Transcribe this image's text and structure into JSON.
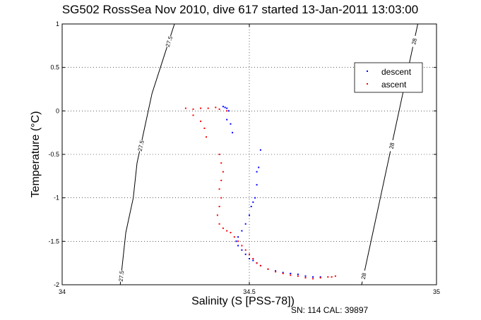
{
  "chart_data": {
    "type": "scatter",
    "title": "SG502 RossSea Nov 2010, dive 617 started 13-Jan-2011 13:03:00",
    "xlabel": "Salinity (S [PSS-78])",
    "ylabel": "Temperature (°C)",
    "xlim": [
      34,
      35
    ],
    "ylim": [
      -2,
      1
    ],
    "xticks": [
      "34",
      "34.5",
      "35"
    ],
    "yticks": [
      "-2",
      "-1.5",
      "-1",
      "-0.5",
      "0",
      "0.5",
      "1"
    ],
    "grid": true,
    "legend_position": "top-right",
    "footer": "SN: 114  CAL: 39897",
    "isopycnals": [
      {
        "sigma": 27.5,
        "labels": [
          "27.5",
          "27.5",
          "27.5"
        ],
        "points": [
          [
            34.3,
            1.0
          ],
          [
            34.27,
            0.6
          ],
          [
            34.24,
            0.2
          ],
          [
            34.22,
            -0.2
          ],
          [
            34.2,
            -0.6
          ],
          [
            34.19,
            -1.0
          ],
          [
            34.17,
            -1.4
          ],
          [
            34.16,
            -1.8
          ],
          [
            34.155,
            -2.0
          ]
        ]
      },
      {
        "sigma": 28,
        "labels": [
          "28",
          "28",
          "28"
        ],
        "points": [
          [
            34.95,
            1.0
          ],
          [
            34.93,
            0.6
          ],
          [
            34.91,
            0.2
          ],
          [
            34.89,
            -0.2
          ],
          [
            34.87,
            -0.6
          ],
          [
            34.85,
            -1.0
          ],
          [
            34.83,
            -1.4
          ],
          [
            34.81,
            -1.8
          ],
          [
            34.8,
            -2.0
          ]
        ]
      }
    ],
    "series": [
      {
        "name": "descent",
        "color": "#0000ff",
        "points": [
          [
            34.43,
            0.05
          ],
          [
            34.435,
            0.04
          ],
          [
            34.44,
            0.03
          ],
          [
            34.445,
            0.0
          ],
          [
            34.44,
            -0.1
          ],
          [
            34.45,
            -0.15
          ],
          [
            34.455,
            -0.25
          ],
          [
            34.53,
            -0.45
          ],
          [
            34.525,
            -0.65
          ],
          [
            34.52,
            -0.7
          ],
          [
            34.52,
            -0.85
          ],
          [
            34.515,
            -1.0
          ],
          [
            34.51,
            -1.05
          ],
          [
            34.505,
            -1.1
          ],
          [
            34.5,
            -1.2
          ],
          [
            34.49,
            -1.3
          ],
          [
            34.48,
            -1.38
          ],
          [
            34.47,
            -1.45
          ],
          [
            34.465,
            -1.5
          ],
          [
            34.47,
            -1.55
          ],
          [
            34.48,
            -1.6
          ],
          [
            34.49,
            -1.65
          ],
          [
            34.5,
            -1.7
          ],
          [
            34.51,
            -1.72
          ],
          [
            34.52,
            -1.75
          ],
          [
            34.53,
            -1.78
          ],
          [
            34.55,
            -1.82
          ],
          [
            34.57,
            -1.84
          ],
          [
            34.59,
            -1.86
          ],
          [
            34.61,
            -1.87
          ],
          [
            34.63,
            -1.88
          ],
          [
            34.65,
            -1.9
          ],
          [
            34.67,
            -1.91
          ],
          [
            34.69,
            -1.91
          ]
        ]
      },
      {
        "name": "ascent",
        "color": "#ff0000",
        "points": [
          [
            34.33,
            0.03
          ],
          [
            34.35,
            0.02
          ],
          [
            34.37,
            0.03
          ],
          [
            34.39,
            0.03
          ],
          [
            34.41,
            0.04
          ],
          [
            34.42,
            0.02
          ],
          [
            34.44,
            0.0
          ],
          [
            34.35,
            -0.05
          ],
          [
            34.37,
            -0.12
          ],
          [
            34.38,
            -0.2
          ],
          [
            34.385,
            -0.3
          ],
          [
            34.42,
            -0.5
          ],
          [
            34.425,
            -0.6
          ],
          [
            34.43,
            -0.7
          ],
          [
            34.425,
            -0.8
          ],
          [
            34.42,
            -0.9
          ],
          [
            34.425,
            -1.0
          ],
          [
            34.42,
            -1.1
          ],
          [
            34.415,
            -1.2
          ],
          [
            34.42,
            -1.3
          ],
          [
            34.43,
            -1.35
          ],
          [
            34.44,
            -1.38
          ],
          [
            34.45,
            -1.4
          ],
          [
            34.46,
            -1.45
          ],
          [
            34.47,
            -1.5
          ],
          [
            34.48,
            -1.55
          ],
          [
            34.49,
            -1.6
          ],
          [
            34.5,
            -1.65
          ],
          [
            34.51,
            -1.7
          ],
          [
            34.52,
            -1.75
          ],
          [
            34.53,
            -1.78
          ],
          [
            34.55,
            -1.82
          ],
          [
            34.57,
            -1.85
          ],
          [
            34.59,
            -1.87
          ],
          [
            34.61,
            -1.89
          ],
          [
            34.63,
            -1.9
          ],
          [
            34.65,
            -1.92
          ],
          [
            34.67,
            -1.93
          ],
          [
            34.69,
            -1.92
          ],
          [
            34.71,
            -1.91
          ],
          [
            34.73,
            -1.9
          ],
          [
            34.72,
            -1.91
          ]
        ]
      }
    ]
  }
}
